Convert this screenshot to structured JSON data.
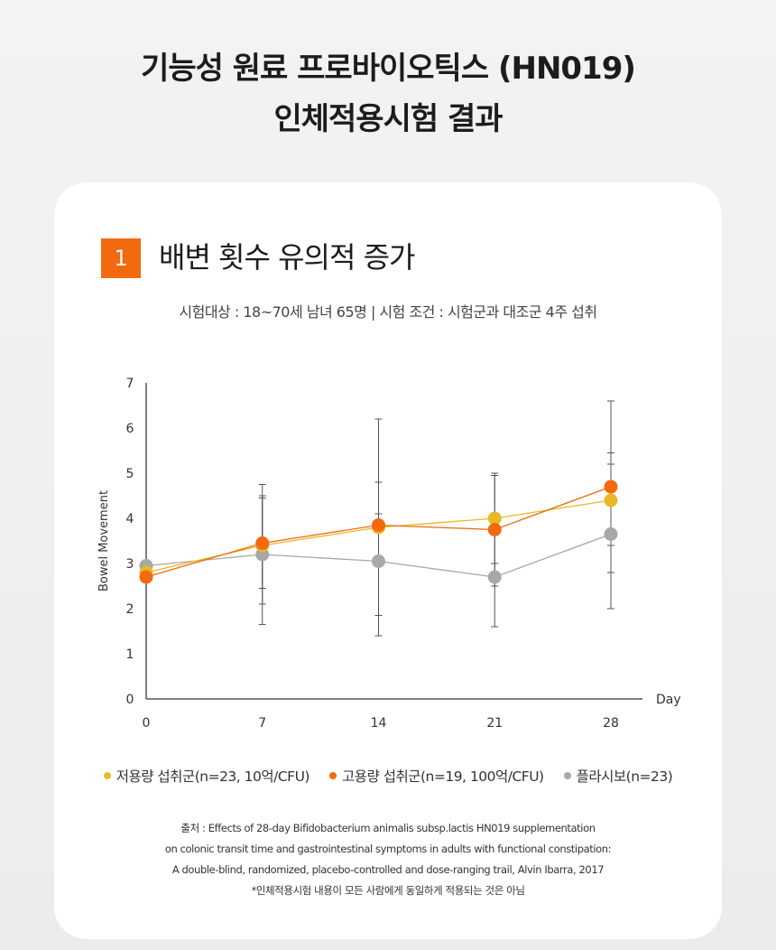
{
  "page": {
    "title_line1": "기능성 원료 프로바이오틱스 (HN019)",
    "title_line2": "인체적용시험 결과"
  },
  "section": {
    "number": "1",
    "heading": "배변 횟수 유의적 증가",
    "subject": "시험대상 : 18~70세 남녀 65명  |  시험 조건 : 시험군과 대조군 4주 섭취"
  },
  "chart_data": {
    "type": "line",
    "xlabel": "Day",
    "ylabel": "Bowel Movement",
    "x": [
      0,
      7,
      14,
      21,
      28
    ],
    "x_ticks": [
      "0",
      "7",
      "14",
      "21",
      "28"
    ],
    "y_ticks": [
      "0",
      "1",
      "2",
      "3",
      "4",
      "5",
      "6",
      "7"
    ],
    "ylim": [
      0,
      7
    ],
    "grid": false,
    "legend_position": "bottom",
    "series": [
      {
        "name": "저용량 섭취군(n=23, 10억/CFU)",
        "color": "#e8b923",
        "values": [
          2.8,
          3.4,
          3.8,
          4.0,
          4.4
        ],
        "error": [
          null,
          [
            2.1,
            4.5
          ],
          [
            1.4,
            6.2
          ],
          [
            3.0,
            5.0
          ],
          [
            3.4,
            5.45
          ]
        ]
      },
      {
        "name": "고용량 섭취군(n=19, 100억/CFU)",
        "color": "#f26a0f",
        "values": [
          2.7,
          3.45,
          3.85,
          3.75,
          4.7
        ],
        "error": [
          null,
          [
            2.45,
            4.45
          ],
          [
            1.85,
            4.8
          ],
          [
            2.5,
            4.95
          ],
          [
            2.8,
            6.6
          ]
        ]
      },
      {
        "name": "플라시보(n=23)",
        "color": "#a8a8a8",
        "values": [
          2.95,
          3.2,
          3.05,
          2.7,
          3.65
        ],
        "error": [
          null,
          [
            1.65,
            4.75
          ],
          [
            1.85,
            4.1
          ],
          [
            1.6,
            3.0
          ],
          [
            2.0,
            5.2
          ]
        ]
      }
    ]
  },
  "source": {
    "line1": "출처 : Effects of 28-day Bifidobacterium animalis subsp.lactis HN019 supplementation",
    "line2": "on colonic transit time and gastrointestinal symptoms in adults with functional constipation:",
    "line3": "A double-blind, randomized, placebo-controlled and dose-ranging trail, Alvin Ibarra, 2017",
    "note": "*인체적용시험 내용이 모든 사람에게 동일하게 적용되는 것은 아님"
  }
}
